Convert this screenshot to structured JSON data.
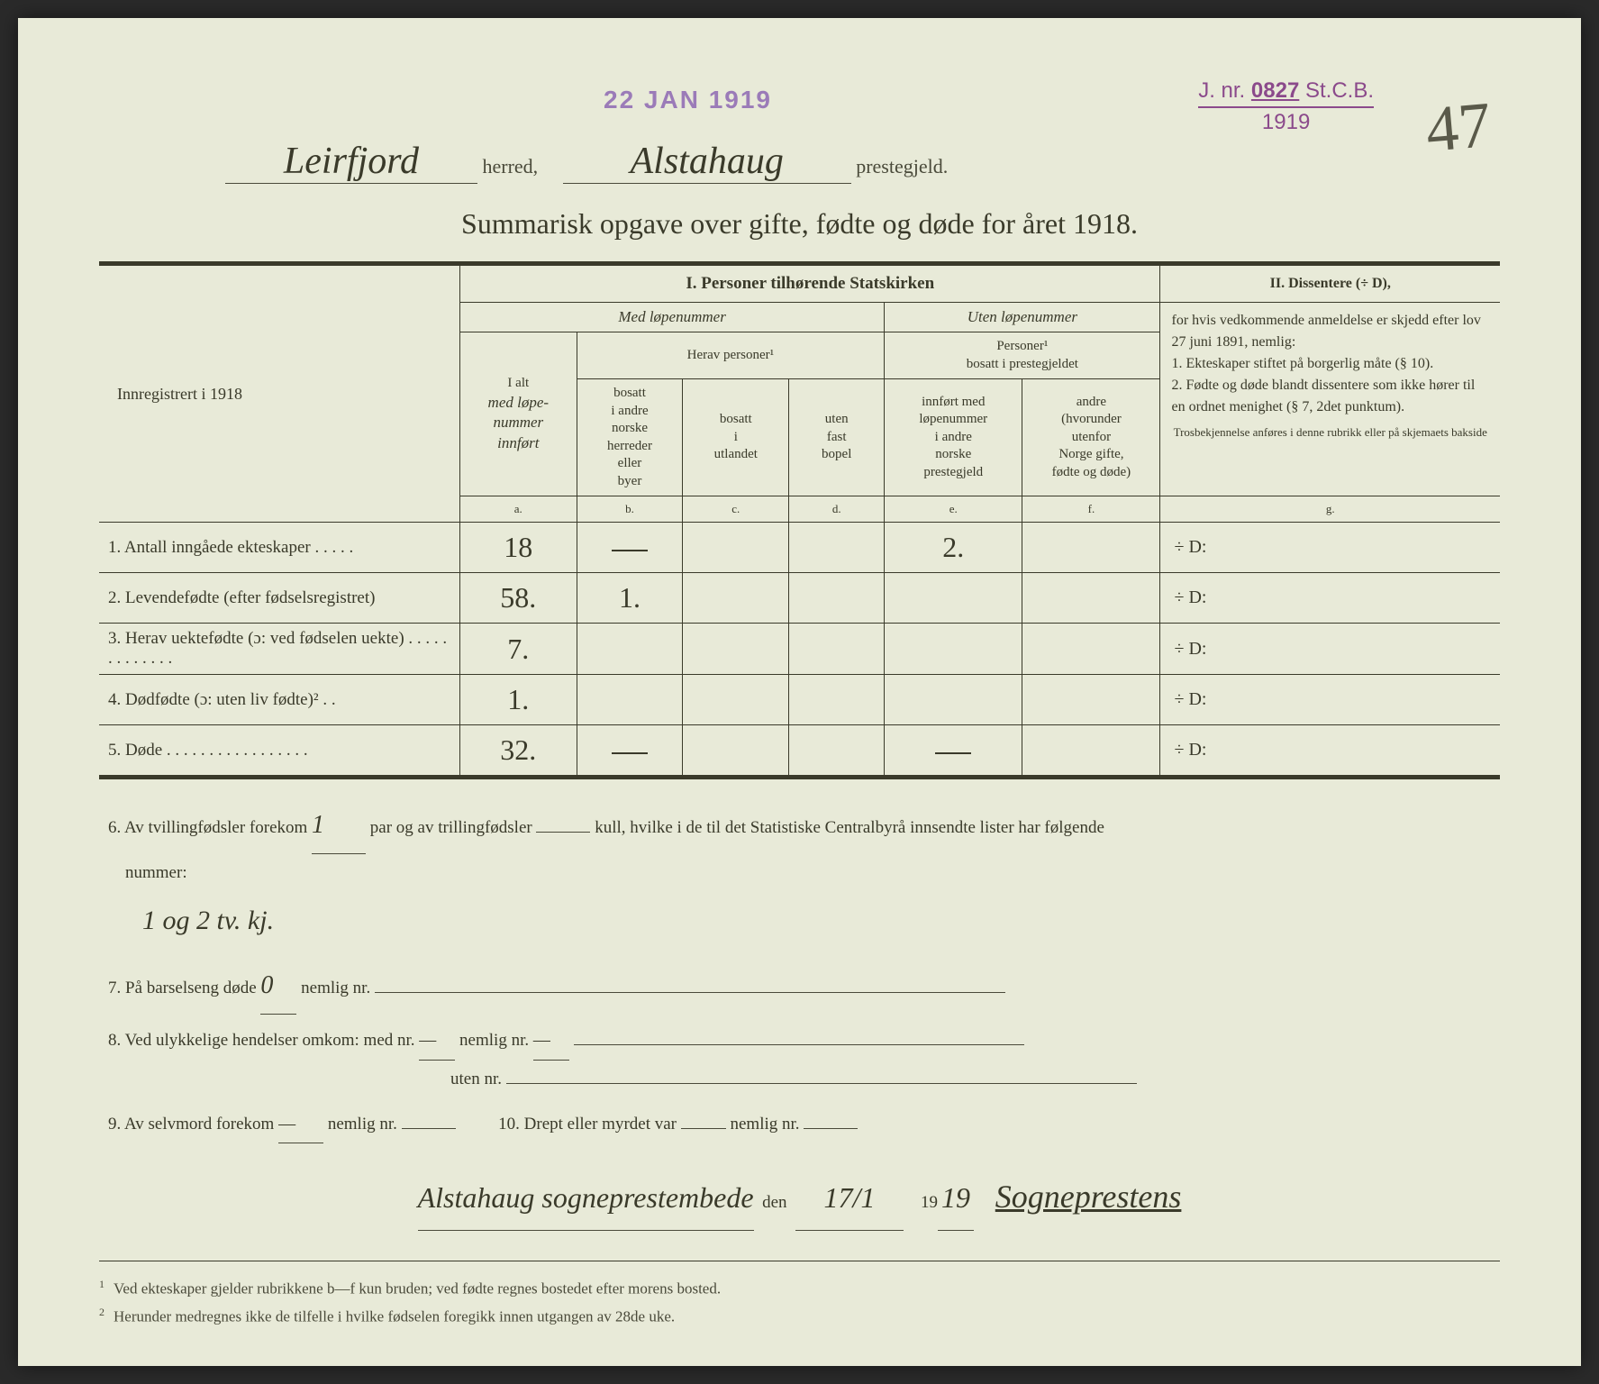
{
  "stamps": {
    "date": "22 JAN 1919",
    "jnr_prefix": "J. nr.",
    "jnr_number": "0827",
    "jnr_suffix": "St.C.B.",
    "jnr_year": "1919"
  },
  "page_number": "47",
  "location": {
    "herred_value": "Leirfjord",
    "herred_label": "herred,",
    "prestegjeld_value": "Alstahaug",
    "prestegjeld_label": "prestegjeld."
  },
  "title": "Summarisk opgave over gifte, fødte og døde for året 1918.",
  "table": {
    "left_header": "Innregistrert i 1918",
    "section1": {
      "title": "I.  Personer tilhørende Statskirken",
      "med_lopenummer": "Med løpenummer",
      "uten_lopenummer": "Uten løpenummer",
      "i_alt": "I alt",
      "i_alt_sub": "med løpe-\nnummer\ninnført",
      "herav_personer": "Herav personer¹",
      "personer_bosatt": "Personer¹\nbosatt i prestegjeldet",
      "col_b": "bosatt\ni andre\nnorske\nherreder\neller\nbyer",
      "col_c": "bosatt\ni\nutlandet",
      "col_d": "uten\nfast\nbopel",
      "col_e": "innført med\nløpenummer\ni andre\nnorske\nprestegjeld",
      "col_f": "andre\n(hvorunder\nutenfor\nNorge gifte,\nfødte og døde)",
      "col_labels": {
        "a": "a.",
        "b": "b.",
        "c": "c.",
        "d": "d.",
        "e": "e.",
        "f": "f.",
        "g": "g."
      }
    },
    "section2": {
      "title": "II.  Dissentere (÷ D),",
      "text": "for hvis vedkommende anmeldelse er skjedd efter lov 27 juni 1891, nemlig:\n1. Ekteskaper stiftet på borgerlig måte (§ 10).\n2. Fødte og døde blandt dissentere som ikke hører til en ordnet menighet (§ 7, 2det punktum).",
      "small": "Trosbekjennelse anføres i denne rubrikk eller på skjemaets bakside"
    },
    "rows": [
      {
        "num": "1.",
        "label": "Antall inngåede ekteskaper . . . . .",
        "a": "18",
        "b": "—",
        "c": "",
        "d": "",
        "e": "2.",
        "f": "",
        "g": "÷ D:"
      },
      {
        "num": "2.",
        "label": "Levendefødte (efter fødselsregistret)",
        "a": "58.",
        "b": "1.",
        "c": "",
        "d": "",
        "e": "",
        "f": "",
        "g": "÷ D:"
      },
      {
        "num": "3.",
        "label": "Herav uektefødte (ɔ: ved fødselen uekte) . . . . . . . . . . . . .",
        "a": "7.",
        "b": "",
        "c": "",
        "d": "",
        "e": "",
        "f": "",
        "g": "÷ D:"
      },
      {
        "num": "4.",
        "label": "Dødfødte (ɔ: uten liv fødte)² . .",
        "a": "1.",
        "b": "",
        "c": "",
        "d": "",
        "e": "",
        "f": "",
        "g": "÷ D:"
      },
      {
        "num": "5.",
        "label": "Døde . . . . . . . . . . . . . . . . .",
        "a": "32.",
        "b": "—",
        "c": "",
        "d": "",
        "e": "—",
        "f": "",
        "g": "÷ D:"
      }
    ]
  },
  "bottom": {
    "item6_pre": "6.  Av tvillingfødsler forekom",
    "item6_val1": "1",
    "item6_mid": "par og av trillingfødsler",
    "item6_post": "kull, hvilke i de til det Statistiske Centralbyrå innsendte lister har følgende",
    "item6_nummer": "nummer:",
    "item6_note": "1 og 2 tv. kj.",
    "item7": "7.  På barselseng døde",
    "item7_val": "0",
    "item7_post": "nemlig nr.",
    "item8": "8.  Ved ulykkelige hendelser omkom:  med nr.",
    "item8_mid": "nemlig nr.",
    "item8_uten": "uten nr.",
    "item9": "9.  Av selvmord forekom",
    "item9_mid": "nemlig nr.",
    "item10": "10.  Drept eller myrdet var",
    "item10_mid": "nemlig nr.",
    "sig_place": "Alstahaug sogneprestembede",
    "sig_den": "den",
    "sig_date": "17/1",
    "sig_year_pre": "19",
    "sig_year": "19",
    "signature": "Sogneprestens"
  },
  "footnotes": {
    "f1": "Ved ekteskaper gjelder rubrikkene b—f kun bruden; ved fødte regnes bostedet efter morens bosted.",
    "f2": "Herunder medregnes ikke de tilfelle i hvilke fødselen foregikk innen utgangen av 28de uke."
  },
  "colors": {
    "paper": "#e8ead8",
    "ink": "#3a3a2a",
    "stamp_purple": "#8b4a8b",
    "stamp_violet": "#9b7bb8"
  }
}
